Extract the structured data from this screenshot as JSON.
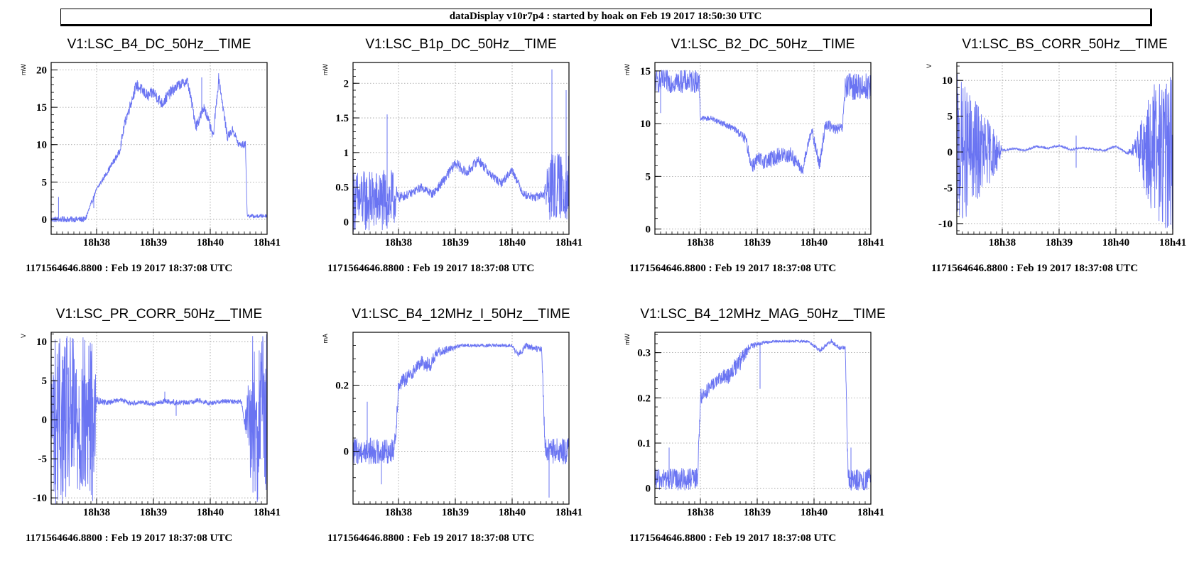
{
  "banner": "dataDisplay v10r7p4 : started by hoak on Feb 19 2017 18:50:30 UTC",
  "colors": {
    "series": "#6a74f2",
    "grid": "#9a9a9a",
    "axis": "#000000"
  },
  "chart_data": [
    {
      "type": "line",
      "title": "V1:LSC_B4_DC_50Hz__TIME",
      "ylabel": "mW",
      "footer": "1171564646.8800 : Feb 19 2017 18:37:08 UTC",
      "x_ticks": [
        "18h38",
        "18h39",
        "18h40",
        "18h41"
      ],
      "xlim": [
        -0.8,
        3.0
      ],
      "ylim": [
        -2,
        21
      ],
      "y_ticks": [
        0,
        5,
        10,
        15,
        20
      ],
      "series": [
        {
          "x": [
            -0.8,
            -0.2,
            0.0,
            0.2,
            0.4,
            0.5,
            0.7,
            0.9,
            1.0,
            1.15,
            1.3,
            1.45,
            1.6,
            1.75,
            1.9,
            2.05,
            2.15,
            2.3,
            2.4,
            2.5,
            2.62,
            2.65,
            2.8,
            3.0
          ],
          "y": [
            0,
            0,
            4,
            6.5,
            9,
            13,
            18,
            16.5,
            17,
            15.5,
            17,
            18,
            18.5,
            12.5,
            15,
            11,
            19,
            11,
            12,
            10,
            10,
            0.5,
            0.4,
            0.5
          ],
          "noise": [
            0.8,
            0.8,
            0.6,
            0.7,
            1.0,
            1.4,
            1.5,
            1.6,
            1.6,
            1.6,
            1.6,
            1.4,
            1.2,
            1.6,
            1.4,
            1.2,
            1.6,
            1.2,
            1.2,
            1.0,
            1.0,
            0.5,
            0.5,
            0.5
          ],
          "spikes": [
            {
              "x": -0.67,
              "y": 3.0
            },
            {
              "x": -0.05,
              "y": 1.5
            },
            {
              "x": 1.85,
              "y": 19.0
            },
            {
              "x": 2.15,
              "y": 19.0
            }
          ]
        }
      ],
      "grid": true
    },
    {
      "type": "line",
      "title": "V1:LSC_B1p_DC_50Hz__TIME",
      "ylabel": "mW",
      "footer": "1171564646.8800 : Feb 19 2017 18:37:08 UTC",
      "x_ticks": [
        "18h38",
        "18h39",
        "18h40",
        "18h41"
      ],
      "xlim": [
        -0.8,
        3.0
      ],
      "ylim": [
        -0.18,
        2.3
      ],
      "y_ticks": [
        0,
        0.5,
        1,
        1.5,
        2
      ],
      "series": [
        {
          "x": [
            -0.8,
            -0.1,
            0.0,
            0.2,
            0.4,
            0.6,
            0.8,
            1.0,
            1.2,
            1.4,
            1.6,
            1.8,
            2.0,
            2.2,
            2.4,
            2.55,
            2.65,
            3.0
          ],
          "y": [
            0.3,
            0.3,
            0.35,
            0.4,
            0.5,
            0.4,
            0.6,
            0.85,
            0.7,
            0.9,
            0.7,
            0.55,
            0.75,
            0.4,
            0.35,
            0.4,
            0.5,
            0.5
          ],
          "noise": [
            0.9,
            0.9,
            0.15,
            0.12,
            0.12,
            0.12,
            0.14,
            0.16,
            0.14,
            0.14,
            0.14,
            0.12,
            0.12,
            0.12,
            0.12,
            0.12,
            1.0,
            1.0
          ],
          "spikes": [
            {
              "x": -0.2,
              "y": 1.55
            },
            {
              "x": 2.7,
              "y": 2.2
            },
            {
              "x": 2.95,
              "y": 1.9
            }
          ]
        }
      ],
      "grid": true
    },
    {
      "type": "line",
      "title": "V1:LSC_B2_DC_50Hz__TIME",
      "ylabel": "mW",
      "footer": "1171564646.8800 : Feb 19 2017 18:37:08 UTC",
      "x_ticks": [
        "18h38",
        "18h39",
        "18h40",
        "18h41"
      ],
      "xlim": [
        -0.8,
        3.0
      ],
      "ylim": [
        -0.5,
        15.8
      ],
      "y_ticks": [
        0,
        5,
        10,
        15
      ],
      "series": [
        {
          "x": [
            -0.8,
            -0.02,
            0.0,
            0.2,
            0.4,
            0.6,
            0.8,
            0.9,
            1.0,
            1.2,
            1.4,
            1.6,
            1.8,
            1.95,
            2.1,
            2.2,
            2.35,
            2.5,
            2.55,
            3.0
          ],
          "y": [
            14,
            14,
            10.5,
            10.5,
            10,
            9.5,
            8.5,
            6,
            6.5,
            6.5,
            7,
            7,
            5.5,
            9.5,
            6,
            10,
            9.5,
            9.5,
            13.5,
            13.5
          ],
          "noise": [
            2.2,
            2.2,
            0.5,
            0.5,
            0.6,
            0.6,
            1.0,
            1.4,
            1.6,
            1.6,
            1.6,
            1.6,
            1.0,
            1.2,
            1.4,
            1.2,
            1.0,
            1.0,
            2.6,
            2.6
          ],
          "spikes": [
            {
              "x": -0.7,
              "y": 11.0
            },
            {
              "x": 0.05,
              "y": 10.5
            }
          ]
        }
      ],
      "grid": true
    },
    {
      "type": "line",
      "title": "V1:LSC_BS_CORR_50Hz__TIME",
      "ylabel": "V",
      "footer": "1171564646.8800 : Feb 19 2017 18:37:08 UTC",
      "x_ticks": [
        "18h38",
        "18h39",
        "18h40",
        "18h41"
      ],
      "xlim": [
        -0.8,
        3.0
      ],
      "ylim": [
        -11.5,
        12.5
      ],
      "y_ticks": [
        -10,
        -5,
        0,
        5,
        10
      ],
      "series": [
        {
          "x": [
            -0.8,
            -0.1,
            0.0,
            0.2,
            0.4,
            0.6,
            0.8,
            1.0,
            1.2,
            1.4,
            1.6,
            1.8,
            2.0,
            2.2,
            2.35,
            2.4,
            2.7,
            3.0
          ],
          "y": [
            0,
            0,
            0.2,
            0.5,
            0.2,
            0.8,
            0.5,
            0.9,
            0.3,
            0.6,
            0.4,
            0.2,
            0.8,
            -0.2,
            0.7,
            0.5,
            0,
            0
          ],
          "noise": [
            22.0,
            6.0,
            0.3,
            0.3,
            0.3,
            0.3,
            0.3,
            0.3,
            0.3,
            0.3,
            0.3,
            0.3,
            0.3,
            0.3,
            3.0,
            6.0,
            22.0,
            22.0
          ],
          "spikes": [
            {
              "x": 1.3,
              "y": 2.3
            },
            {
              "x": 1.3,
              "y": -2.2
            }
          ]
        }
      ],
      "grid": true
    },
    {
      "type": "line",
      "title": "V1:LSC_PR_CORR_50Hz__TIME",
      "ylabel": "V",
      "footer": "1171564646.8800 : Feb 19 2017 18:37:08 UTC",
      "x_ticks": [
        "18h38",
        "18h39",
        "18h40",
        "18h41"
      ],
      "xlim": [
        -0.8,
        3.0
      ],
      "ylim": [
        -10.8,
        11.2
      ],
      "y_ticks": [
        -10,
        -5,
        0,
        5,
        10
      ],
      "series": [
        {
          "x": [
            -0.8,
            -0.05,
            0.0,
            0.2,
            0.4,
            0.6,
            0.8,
            1.0,
            1.2,
            1.4,
            1.6,
            1.8,
            2.0,
            2.2,
            2.4,
            2.55,
            2.6,
            2.75,
            3.0
          ],
          "y": [
            0,
            0,
            2.5,
            2.2,
            2.6,
            2.1,
            2.3,
            2.0,
            2.4,
            2.2,
            2.2,
            2.5,
            2.1,
            2.4,
            2.3,
            2.3,
            -0.3,
            0,
            0
          ],
          "noise": [
            22.0,
            22.0,
            1.0,
            0.6,
            0.6,
            0.6,
            0.6,
            0.6,
            0.6,
            0.8,
            0.6,
            0.6,
            0.6,
            0.6,
            0.6,
            0.6,
            0.3,
            22.0,
            22.0
          ],
          "spikes": [
            {
              "x": 1.2,
              "y": 3.6
            },
            {
              "x": 1.4,
              "y": 0.5
            }
          ]
        }
      ],
      "grid": true
    },
    {
      "type": "line",
      "title": "V1:LSC_B4_12MHz_I_50Hz__TIME",
      "ylabel": "mA",
      "footer": "1171564646.8800 : Feb 19 2017 18:37:08 UTC",
      "x_ticks": [
        "18h38",
        "18h39",
        "18h40",
        "18h41"
      ],
      "xlim": [
        -0.8,
        3.0
      ],
      "ylim": [
        -0.16,
        0.36
      ],
      "y_ticks": [
        0,
        0.2
      ],
      "series": [
        {
          "x": [
            -0.8,
            -0.1,
            -0.05,
            0.0,
            0.2,
            0.4,
            0.55,
            0.7,
            0.9,
            1.1,
            1.3,
            1.5,
            1.7,
            1.85,
            2.0,
            2.1,
            2.25,
            2.4,
            2.52,
            2.58,
            3.0
          ],
          "y": [
            0,
            0,
            0.05,
            0.2,
            0.23,
            0.27,
            0.26,
            0.3,
            0.31,
            0.32,
            0.32,
            0.32,
            0.32,
            0.32,
            0.32,
            0.29,
            0.32,
            0.31,
            0.31,
            0.0,
            0.0
          ],
          "noise": [
            0.08,
            0.08,
            0.06,
            0.05,
            0.04,
            0.04,
            0.05,
            0.03,
            0.02,
            0.01,
            0.01,
            0.01,
            0.01,
            0.01,
            0.01,
            0.02,
            0.02,
            0.02,
            0.02,
            0.08,
            0.08
          ],
          "spikes": [
            {
              "x": -0.55,
              "y": 0.15
            },
            {
              "x": -0.3,
              "y": -0.1
            },
            {
              "x": 2.65,
              "y": -0.14
            }
          ]
        }
      ],
      "grid": true
    },
    {
      "type": "line",
      "title": "V1:LSC_B4_12MHz_MAG_50Hz__TIME",
      "ylabel": "mW",
      "footer": "1171564646.8800 : Feb 19 2017 18:37:08 UTC",
      "x_ticks": [
        "18h38",
        "18h39",
        "18h40",
        "18h41"
      ],
      "xlim": [
        -0.8,
        3.0
      ],
      "ylim": [
        -0.035,
        0.345
      ],
      "y_ticks": [
        0,
        0.1,
        0.2,
        0.3
      ],
      "series": [
        {
          "x": [
            -0.8,
            -0.05,
            0.0,
            0.15,
            0.3,
            0.5,
            0.7,
            0.85,
            1.0,
            1.3,
            1.6,
            1.9,
            2.1,
            2.3,
            2.45,
            2.55,
            2.6,
            3.0
          ],
          "y": [
            0.02,
            0.02,
            0.2,
            0.22,
            0.24,
            0.25,
            0.28,
            0.31,
            0.32,
            0.325,
            0.325,
            0.325,
            0.305,
            0.325,
            0.31,
            0.31,
            0.02,
            0.02
          ],
          "noise": [
            0.05,
            0.05,
            0.04,
            0.03,
            0.03,
            0.04,
            0.04,
            0.02,
            0.01,
            0.005,
            0.005,
            0.005,
            0.01,
            0.01,
            0.01,
            0.01,
            0.05,
            0.05
          ],
          "spikes": [
            {
              "x": -0.55,
              "y": 0.09
            },
            {
              "x": 1.05,
              "y": 0.22
            },
            {
              "x": 2.65,
              "y": 0.09
            }
          ]
        }
      ],
      "grid": true
    }
  ]
}
